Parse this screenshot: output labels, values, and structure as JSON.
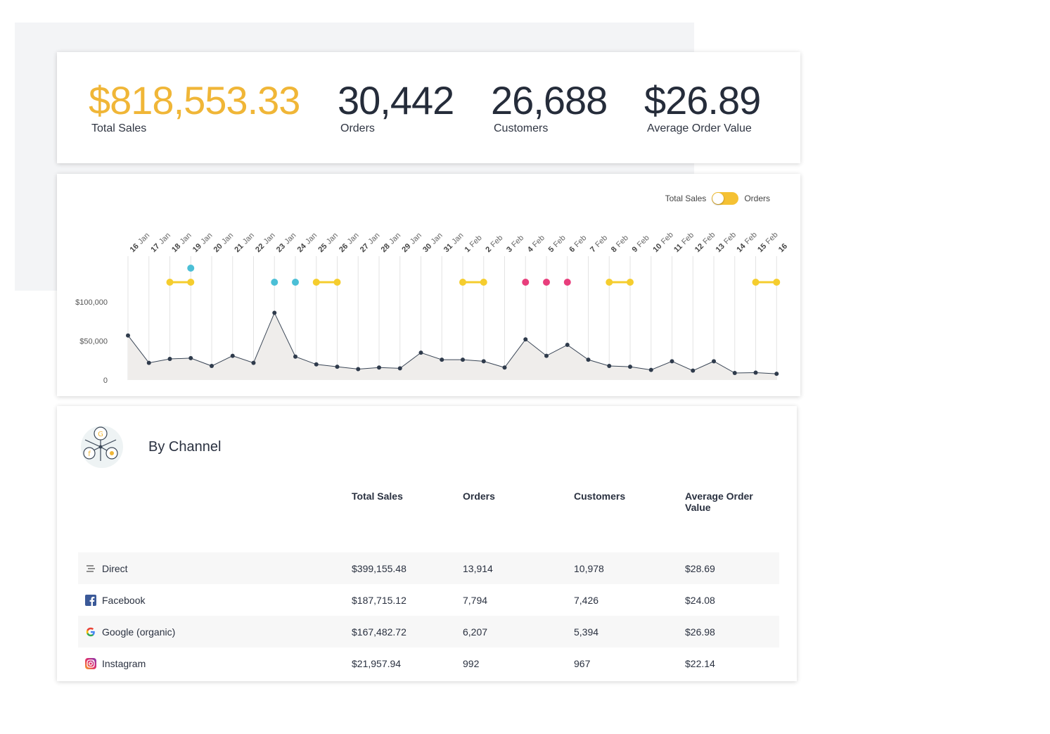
{
  "kpis": [
    {
      "value": "$818,553.33",
      "label": "Total Sales"
    },
    {
      "value": "30,442",
      "label": "Orders"
    },
    {
      "value": "26,688",
      "label": "Customers"
    },
    {
      "value": "$26.89",
      "label": "Average Order Value"
    }
  ],
  "toggle": {
    "left_label": "Total Sales",
    "right_label": "Orders",
    "state": "Total Sales"
  },
  "chart_data": {
    "type": "area",
    "x_labels": [
      {
        "day": "16",
        "month": "Jan"
      },
      {
        "day": "17",
        "month": "Jan"
      },
      {
        "day": "18",
        "month": "Jan"
      },
      {
        "day": "19",
        "month": "Jan"
      },
      {
        "day": "20",
        "month": "Jan"
      },
      {
        "day": "21",
        "month": "Jan"
      },
      {
        "day": "22",
        "month": "Jan"
      },
      {
        "day": "23",
        "month": "Jan"
      },
      {
        "day": "24",
        "month": "Jan"
      },
      {
        "day": "25",
        "month": "Jan"
      },
      {
        "day": "26",
        "month": "Jan"
      },
      {
        "day": "27",
        "month": "Jan"
      },
      {
        "day": "28",
        "month": "Jan"
      },
      {
        "day": "29",
        "month": "Jan"
      },
      {
        "day": "30",
        "month": "Jan"
      },
      {
        "day": "31",
        "month": "Jan"
      },
      {
        "day": "1",
        "month": "Feb"
      },
      {
        "day": "2",
        "month": "Feb"
      },
      {
        "day": "3",
        "month": "Feb"
      },
      {
        "day": "4",
        "month": "Feb"
      },
      {
        "day": "5",
        "month": "Feb"
      },
      {
        "day": "6",
        "month": "Feb"
      },
      {
        "day": "7",
        "month": "Feb"
      },
      {
        "day": "8",
        "month": "Feb"
      },
      {
        "day": "9",
        "month": "Feb"
      },
      {
        "day": "10",
        "month": "Feb"
      },
      {
        "day": "11",
        "month": "Feb"
      },
      {
        "day": "12",
        "month": "Feb"
      },
      {
        "day": "13",
        "month": "Feb"
      },
      {
        "day": "14",
        "month": "Feb"
      },
      {
        "day": "15",
        "month": "Feb"
      },
      {
        "day": "16",
        "month": ""
      }
    ],
    "values": [
      57000,
      22000,
      27000,
      28000,
      18000,
      31000,
      22000,
      86000,
      30000,
      20000,
      17000,
      14000,
      16000,
      15000,
      35000,
      26000,
      26000,
      24000,
      16000,
      52000,
      31000,
      45000,
      26000,
      18000,
      17000,
      13000,
      24000,
      12000,
      24000,
      9000,
      9500,
      8000
    ],
    "y_ticks": [
      {
        "value": 0,
        "label": "0"
      },
      {
        "value": 50000,
        "label": "$50,000"
      },
      {
        "value": 100000,
        "label": "$100,000"
      }
    ],
    "ylim": [
      0,
      160000
    ],
    "annotations": [
      {
        "from": 2,
        "to": 3,
        "color": "#f5cd2e",
        "row": 2
      },
      {
        "from": 3,
        "to": 3,
        "color": "#4bbfd6",
        "row": 1
      },
      {
        "from": 7,
        "to": 7,
        "color": "#4bbfd6",
        "row": 2
      },
      {
        "from": 8,
        "to": 8,
        "color": "#4bbfd6",
        "row": 2
      },
      {
        "from": 9,
        "to": 10,
        "color": "#f5cd2e",
        "row": 2
      },
      {
        "from": 16,
        "to": 17,
        "color": "#f5cd2e",
        "row": 2
      },
      {
        "from": 19,
        "to": 19,
        "color": "#e83e7c",
        "row": 2
      },
      {
        "from": 20,
        "to": 20,
        "color": "#e83e7c",
        "row": 2
      },
      {
        "from": 21,
        "to": 21,
        "color": "#e83e7c",
        "row": 2
      },
      {
        "from": 23,
        "to": 24,
        "color": "#f5cd2e",
        "row": 2
      },
      {
        "from": 30,
        "to": 31,
        "color": "#f5cd2e",
        "row": 2
      }
    ]
  },
  "channel": {
    "title": "By Channel",
    "columns": [
      "",
      "Total Sales",
      "Orders",
      "Customers",
      "Average Order Value"
    ],
    "rows": [
      {
        "name": "Direct",
        "icon": "direct-icon",
        "total_sales": "$399,155.48",
        "orders": "13,914",
        "customers": "10,978",
        "aov": "$28.69"
      },
      {
        "name": "Facebook",
        "icon": "facebook-icon",
        "total_sales": "$187,715.12",
        "orders": "7,794",
        "customers": "7,426",
        "aov": "$24.08"
      },
      {
        "name": "Google (organic)",
        "icon": "google-icon",
        "total_sales": "$167,482.72",
        "orders": "6,207",
        "customers": "5,394",
        "aov": "$26.98"
      },
      {
        "name": "Instagram",
        "icon": "instagram-icon",
        "total_sales": "$21,957.94",
        "orders": "992",
        "customers": "967",
        "aov": "$22.14"
      }
    ]
  },
  "colors": {
    "accent": "#f0b637",
    "line": "#3a4656",
    "area": "#efedeb"
  }
}
